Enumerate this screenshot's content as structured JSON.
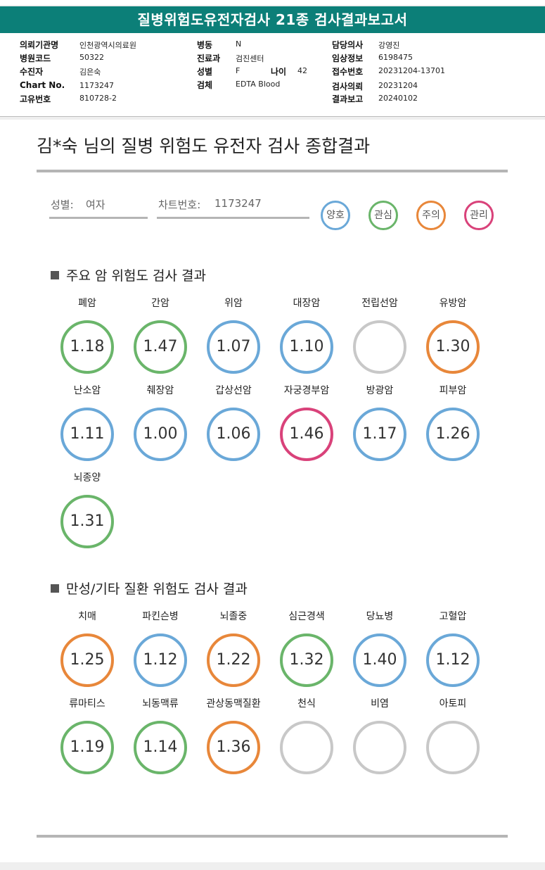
{
  "header": {
    "title": "질병위험도유전자검사 21종 검사결과보고서"
  },
  "info": {
    "hospital_label": "의뢰기관명",
    "hospital": "인천광역시의료원",
    "code_label": "병원코드",
    "code": "50322",
    "patient_label": "수진자",
    "patient": "김은숙",
    "chart_label": "Chart No.",
    "chart": "1173247",
    "id_label": "고유번호",
    "id": "810728-2",
    "ward_label": "병동",
    "ward": "N",
    "dept_label": "진료과",
    "dept": "검진센터",
    "sex_label": "성별",
    "sex": "F",
    "age_label": "나이",
    "age": "42",
    "specimen_label": "검체",
    "specimen": "EDTA Blood",
    "doctor_label": "담당의사",
    "doctor": "강영진",
    "clinical_label": "임상정보",
    "clinical": "6198475",
    "receipt_label": "접수번호",
    "receipt": "20231204-13701",
    "request_label": "검사의뢰",
    "request": "20231204",
    "report_label": "결과보고",
    "report": "20240102"
  },
  "summary": {
    "title": "김*숙 님의 질병 위험도 유전자 검사 종합결과",
    "sex_label": "성별:",
    "sex_value": "여자",
    "chart_label": "차트번호:",
    "chart_value": "1173247"
  },
  "legend": [
    {
      "label": "양호",
      "color": "#6aa8d8"
    },
    {
      "label": "관심",
      "color": "#6ab56a"
    },
    {
      "label": "주의",
      "color": "#e8873a"
    },
    {
      "label": "관리",
      "color": "#d9427a"
    }
  ],
  "cancer": {
    "title": "주요 암 위험도 검사 결과",
    "items": [
      {
        "name": "폐암",
        "value": "1.18",
        "level": "관심"
      },
      {
        "name": "간암",
        "value": "1.47",
        "level": "관심"
      },
      {
        "name": "위암",
        "value": "1.07",
        "level": "양호"
      },
      {
        "name": "대장암",
        "value": "1.10",
        "level": "양호"
      },
      {
        "name": "전립선암",
        "value": "",
        "level": "없음"
      },
      {
        "name": "유방암",
        "value": "1.30",
        "level": "주의"
      },
      {
        "name": "난소암",
        "value": "1.11",
        "level": "양호"
      },
      {
        "name": "췌장암",
        "value": "1.00",
        "level": "양호"
      },
      {
        "name": "갑상선암",
        "value": "1.06",
        "level": "양호"
      },
      {
        "name": "자궁경부암",
        "value": "1.46",
        "level": "관리"
      },
      {
        "name": "방광암",
        "value": "1.17",
        "level": "양호"
      },
      {
        "name": "피부암",
        "value": "1.26",
        "level": "양호"
      },
      {
        "name": "뇌종양",
        "value": "1.31",
        "level": "관심"
      }
    ]
  },
  "chronic": {
    "title": "만성/기타 질환 위험도 검사 결과",
    "items": [
      {
        "name": "치매",
        "value": "1.25",
        "level": "주의"
      },
      {
        "name": "파킨슨병",
        "value": "1.12",
        "level": "양호"
      },
      {
        "name": "뇌졸중",
        "value": "1.22",
        "level": "주의"
      },
      {
        "name": "심근경색",
        "value": "1.32",
        "level": "관심"
      },
      {
        "name": "당뇨병",
        "value": "1.40",
        "level": "양호"
      },
      {
        "name": "고혈압",
        "value": "1.12",
        "level": "양호"
      },
      {
        "name": "류마티스",
        "value": "1.19",
        "level": "관심"
      },
      {
        "name": "뇌동맥류",
        "value": "1.14",
        "level": "관심"
      },
      {
        "name": "관상동맥질환",
        "value": "1.36",
        "level": "주의"
      },
      {
        "name": "천식",
        "value": "",
        "level": "없음"
      },
      {
        "name": "비염",
        "value": "",
        "level": "없음"
      },
      {
        "name": "아토피",
        "value": "",
        "level": "없음"
      }
    ]
  },
  "level_colors": {
    "양호": "#6aa8d8",
    "관심": "#6ab56a",
    "주의": "#e8873a",
    "관리": "#d9427a",
    "없음": "#c8c8c8"
  }
}
